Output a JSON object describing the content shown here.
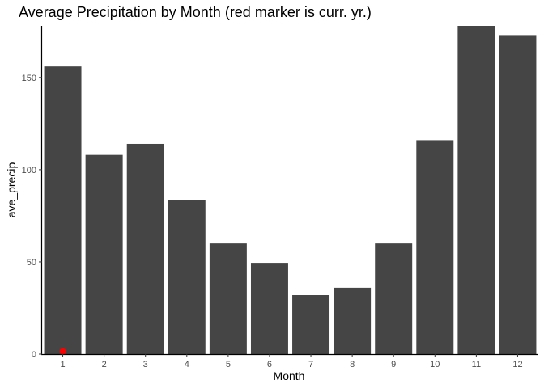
{
  "chart_data": {
    "type": "bar",
    "title": "Average Precipitation by Month (red marker is curr. yr.)",
    "xlabel": "Month",
    "ylabel": "ave_precip",
    "categories": [
      "1",
      "2",
      "3",
      "4",
      "5",
      "6",
      "7",
      "8",
      "9",
      "10",
      "11",
      "12"
    ],
    "series": [
      {
        "values": [
          156,
          108,
          114,
          83.5,
          60,
          49.5,
          32,
          36,
          60,
          116,
          178,
          173
        ],
        "color": "#454545"
      }
    ],
    "markers": [
      {
        "category": "1",
        "value": 1,
        "color": "#ff0000"
      }
    ],
    "ylim": [
      0,
      178
    ],
    "yticks": [
      0,
      50,
      100,
      150
    ],
    "grid": false,
    "legend": "none"
  }
}
